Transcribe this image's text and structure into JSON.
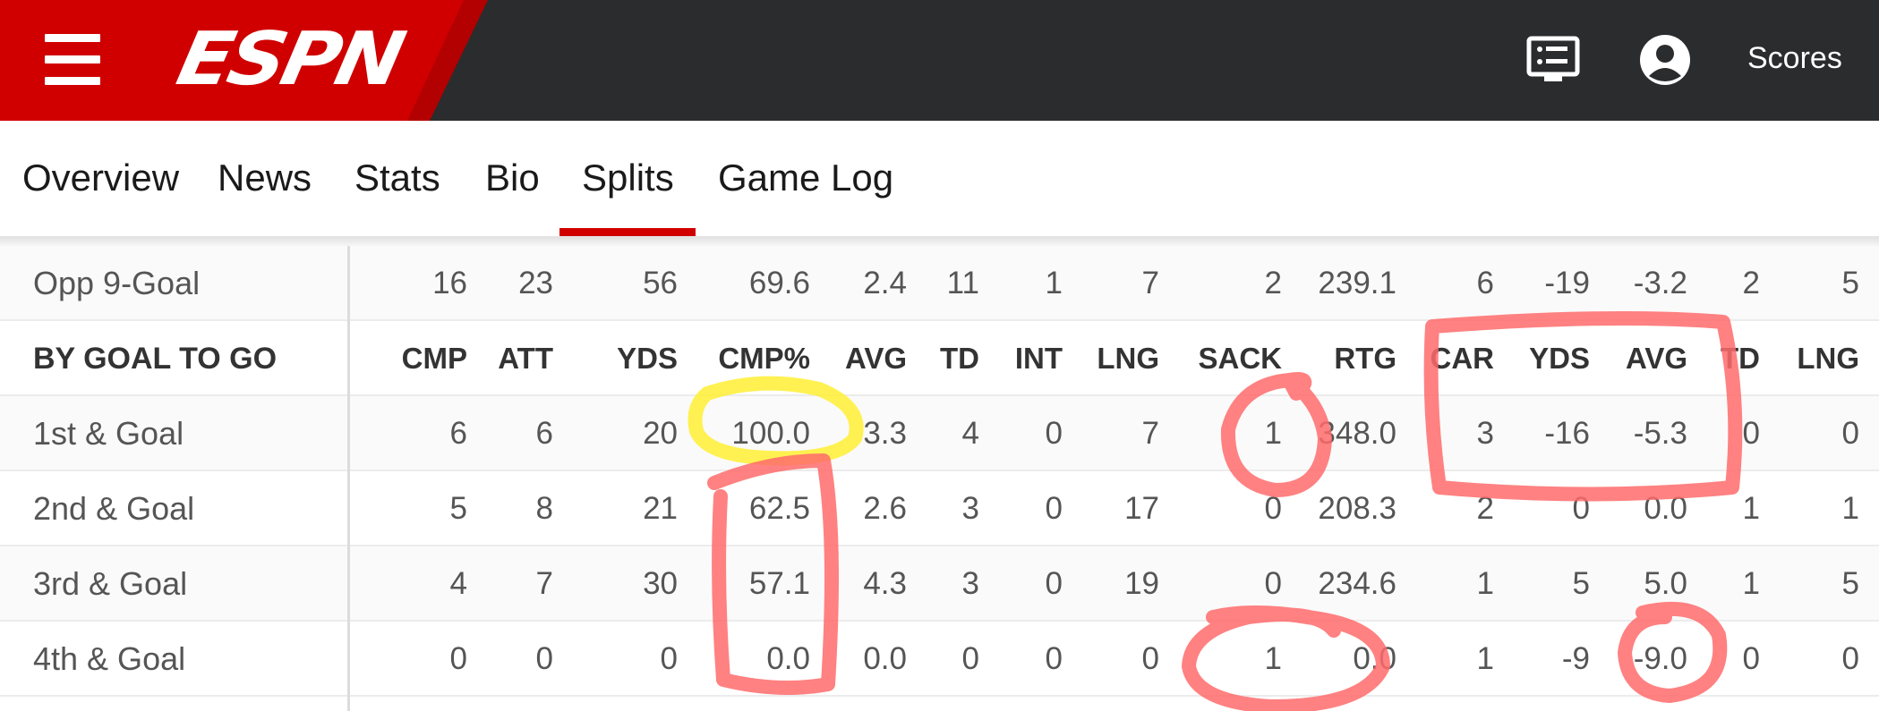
{
  "header": {
    "logo_text": "ESPN",
    "scores_label": "Scores",
    "brand_color": "#d00000",
    "bar_color": "#2b2c2d",
    "icons": [
      "menu-icon",
      "feed-icon",
      "user-icon"
    ]
  },
  "tabs": [
    {
      "label": "Overview"
    },
    {
      "label": "News"
    },
    {
      "label": "Stats"
    },
    {
      "label": "Bio"
    },
    {
      "label": "Splits",
      "active": true
    },
    {
      "label": "Game Log"
    }
  ],
  "table": {
    "prev_row": {
      "label": "Opp 9-Goal",
      "values": [
        "16",
        "23",
        "56",
        "69.6",
        "2.4",
        "11",
        "1",
        "7",
        "2",
        "239.1",
        "6",
        "-19",
        "-3.2",
        "2",
        "5"
      ]
    },
    "section_header": "BY GOAL TO GO",
    "columns": [
      "CMP",
      "ATT",
      "YDS",
      "CMP%",
      "AVG",
      "TD",
      "INT",
      "LNG",
      "SACK",
      "RTG",
      "CAR",
      "YDS",
      "AVG",
      "TD",
      "LNG"
    ],
    "rows": [
      {
        "label": "1st & Goal",
        "values": [
          "6",
          "6",
          "20",
          "100.0",
          "3.3",
          "4",
          "0",
          "7",
          "1",
          "348.0",
          "3",
          "-16",
          "-5.3",
          "0",
          "0"
        ]
      },
      {
        "label": "2nd & Goal",
        "values": [
          "5",
          "8",
          "21",
          "62.5",
          "2.6",
          "3",
          "0",
          "17",
          "0",
          "208.3",
          "2",
          "0",
          "0.0",
          "1",
          "1"
        ]
      },
      {
        "label": "3rd & Goal",
        "values": [
          "4",
          "7",
          "30",
          "57.1",
          "4.3",
          "3",
          "0",
          "19",
          "0",
          "234.6",
          "1",
          "5",
          "5.0",
          "1",
          "5"
        ]
      },
      {
        "label": "4th & Goal",
        "values": [
          "0",
          "0",
          "0",
          "0.0",
          "0.0",
          "0",
          "0",
          "0",
          "1",
          "0.0",
          "1",
          "-9",
          "-9.0",
          "0",
          "0"
        ]
      }
    ]
  },
  "annotations": {
    "red_marker_color": "#ff6b6b",
    "yellow_marker_color": "#ffee33"
  }
}
